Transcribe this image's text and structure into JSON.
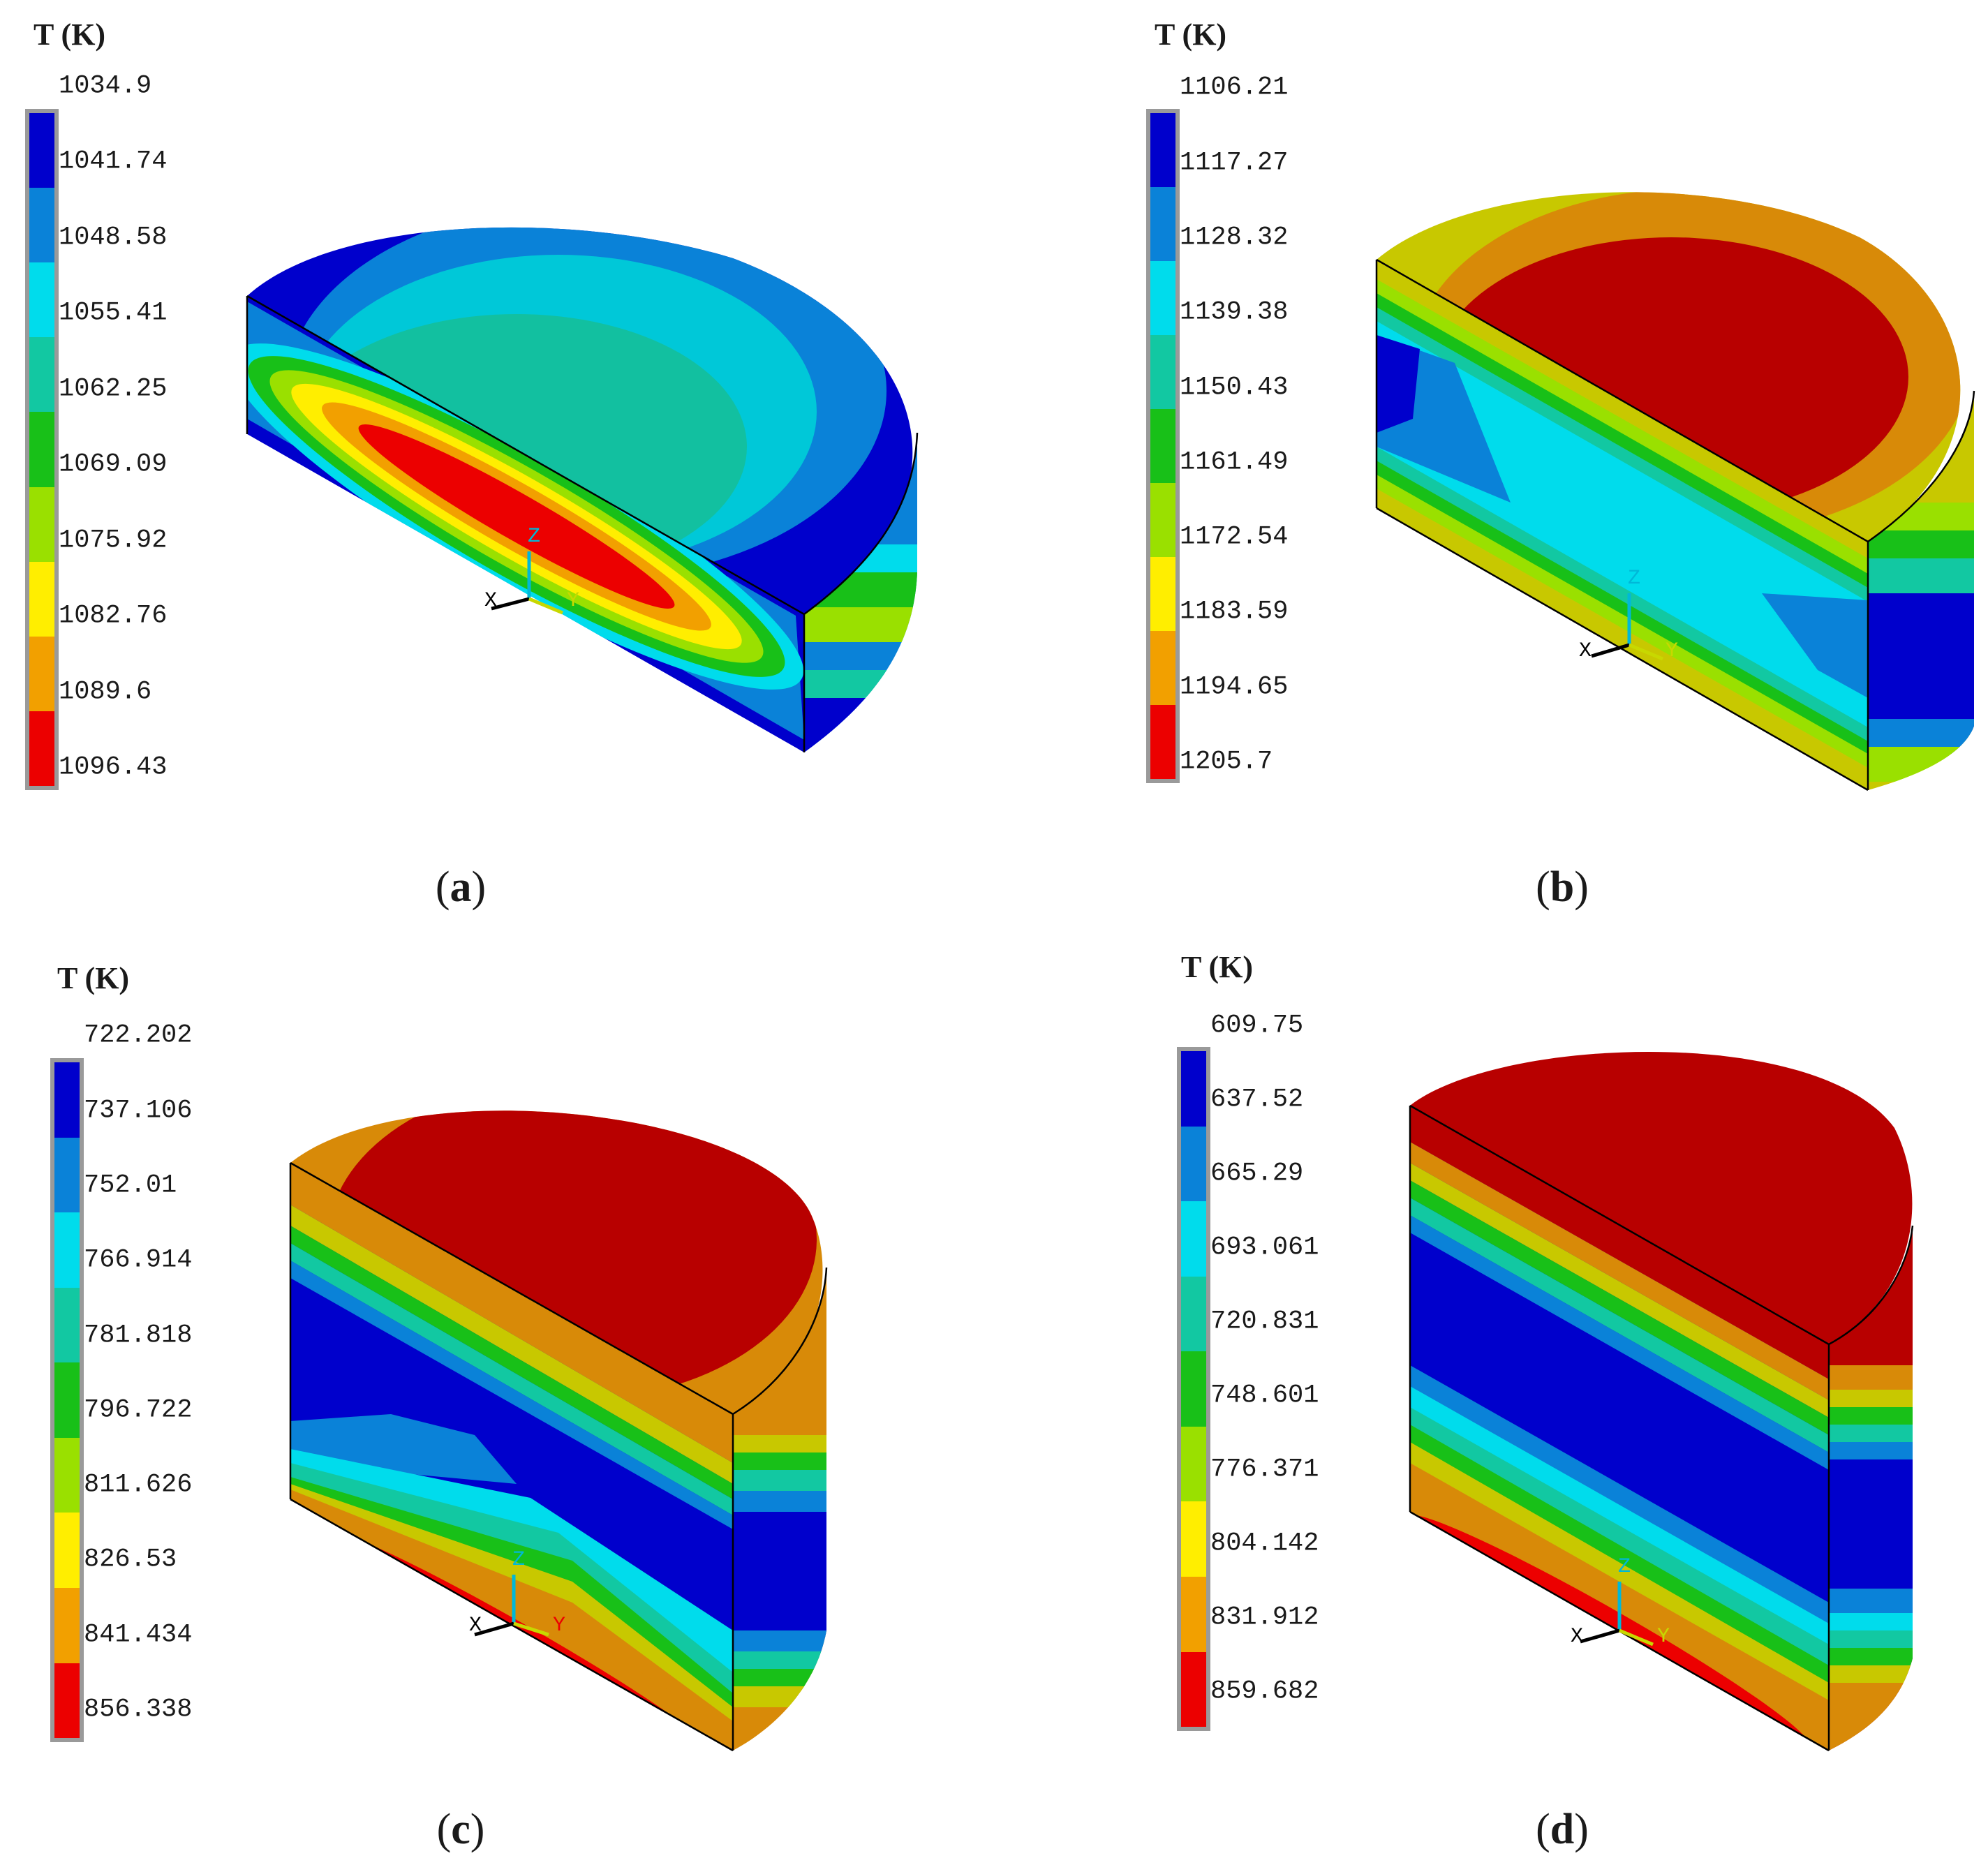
{
  "colors": {
    "bands": [
      "#0000cc",
      "#0a82d8",
      "#00dcec",
      "#12c8a2",
      "#18c018",
      "#9ae000",
      "#ffee00",
      "#f2a000",
      "#ec0000"
    ],
    "deep_red": "#b80000",
    "amber": "#d88a08",
    "olive": "#c8c800",
    "outline": "#000000",
    "bar_frame": "#9a9a9a"
  },
  "panels": [
    {
      "id": "a",
      "caption_label": "a",
      "unit_label": "T (K)",
      "legend_ticks": [
        "1034.9",
        "1041.74",
        "1048.58",
        "1055.41",
        "1062.25",
        "1069.09",
        "1075.92",
        "1082.76",
        "1089.6",
        "1096.43"
      ],
      "axis_triad": {
        "x": "X",
        "y": "Y",
        "z": "Z"
      }
    },
    {
      "id": "b",
      "caption_label": "b",
      "unit_label": "T (K)",
      "legend_ticks": [
        "1106.21",
        "1117.27",
        "1128.32",
        "1139.38",
        "1150.43",
        "1161.49",
        "1172.54",
        "1183.59",
        "1194.65",
        "1205.7"
      ],
      "axis_triad": {
        "x": "X",
        "y": "Y",
        "z": "Z"
      }
    },
    {
      "id": "c",
      "caption_label": "c",
      "unit_label": "T (K)",
      "legend_ticks": [
        "722.202",
        "737.106",
        "752.01",
        "766.914",
        "781.818",
        "796.722",
        "811.626",
        "826.53",
        "841.434",
        "856.338"
      ],
      "axis_triad": {
        "x": "X",
        "y": "Y",
        "z": "Z"
      }
    },
    {
      "id": "d",
      "caption_label": "d",
      "unit_label": "T (K)",
      "legend_ticks": [
        "609.75",
        "637.52",
        "665.29",
        "693.061",
        "720.831",
        "748.601",
        "776.371",
        "804.142",
        "831.912",
        "859.682"
      ],
      "axis_triad": {
        "x": "X",
        "y": "Y",
        "z": "Z"
      }
    }
  ]
}
